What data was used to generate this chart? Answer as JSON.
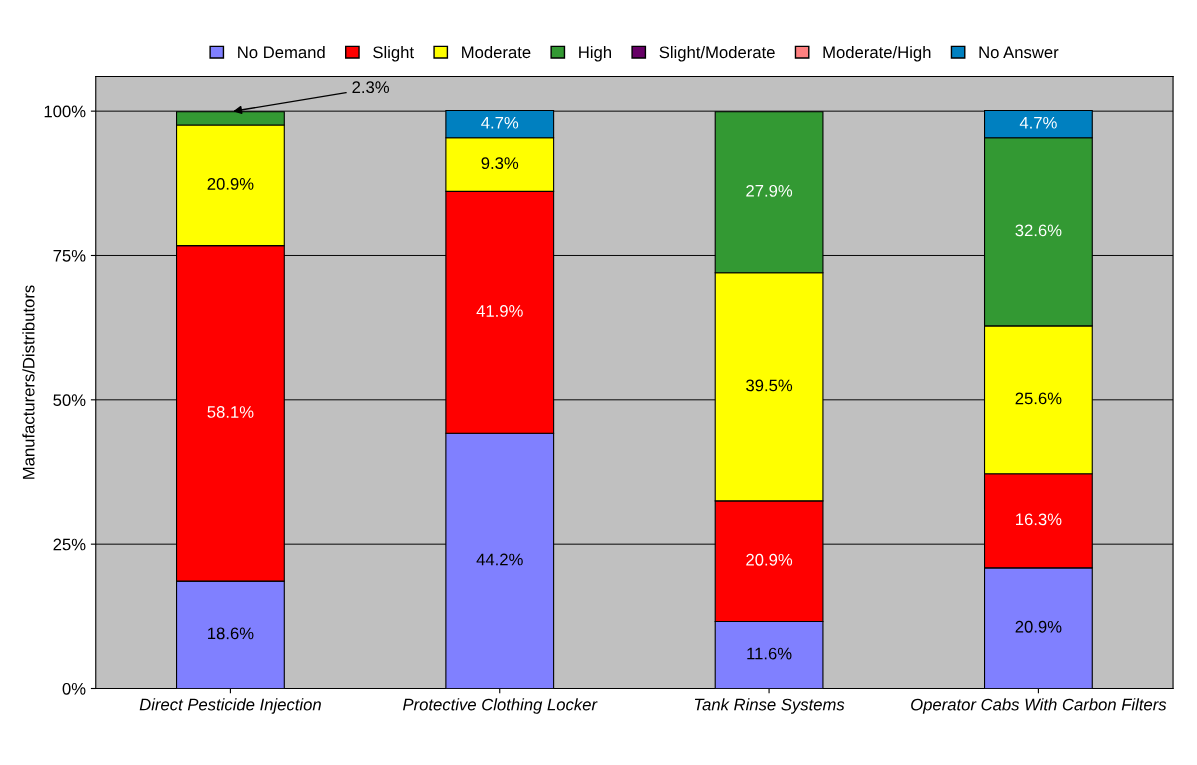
{
  "chart_data": {
    "type": "bar",
    "stacked": true,
    "ylabel": "Manufacturers/Distributors",
    "categories": [
      "Direct Pesticide Injection",
      "Protective Clothing Locker",
      "Tank Rinse Systems",
      "Operator Cabs With Carbon Filters"
    ],
    "series": [
      {
        "name": "No Demand",
        "color": "#8080ff",
        "values": [
          18.6,
          44.2,
          11.6,
          20.9
        ],
        "value_labels": [
          "18.6%",
          "44.2%",
          "11.6%",
          "20.9%"
        ]
      },
      {
        "name": "Slight",
        "color": "#ff0000",
        "values": [
          58.1,
          41.9,
          20.9,
          16.3
        ],
        "value_labels": [
          "58.1%",
          "41.9%",
          "20.9%",
          "16.3%"
        ]
      },
      {
        "name": "Moderate",
        "color": "#ffff00",
        "values": [
          20.9,
          9.3,
          39.5,
          25.6
        ],
        "value_labels": [
          "20.9%",
          "9.3%",
          "39.5%",
          "25.6%"
        ]
      },
      {
        "name": "High",
        "color": "#339933",
        "values": [
          2.3,
          null,
          27.9,
          32.6
        ],
        "value_labels": [
          null,
          null,
          "27.9%",
          "32.6%"
        ]
      },
      {
        "name": "Slight/Moderate",
        "color": "#660066",
        "values": [
          null,
          null,
          null,
          null
        ]
      },
      {
        "name": "Moderate/High",
        "color": "#ff8080",
        "values": [
          null,
          null,
          null,
          null
        ]
      },
      {
        "name": "No Answer",
        "color": "#0080c0",
        "values": [
          null,
          4.7,
          null,
          4.7
        ],
        "value_labels": [
          null,
          "4.7%",
          null,
          "4.7%"
        ]
      }
    ],
    "ylim": [
      0,
      106
    ],
    "yticks": [
      {
        "value": 0,
        "label": "0%"
      },
      {
        "value": 25,
        "label": "25%"
      },
      {
        "value": 50,
        "label": "50%"
      },
      {
        "value": 75,
        "label": "75%"
      },
      {
        "value": 100,
        "label": "100%"
      }
    ],
    "grid": "y",
    "legend": "top",
    "annotations": [
      {
        "text": "2.3%",
        "x": "Direct Pesticide Injection",
        "y": 99.9
      }
    ]
  }
}
